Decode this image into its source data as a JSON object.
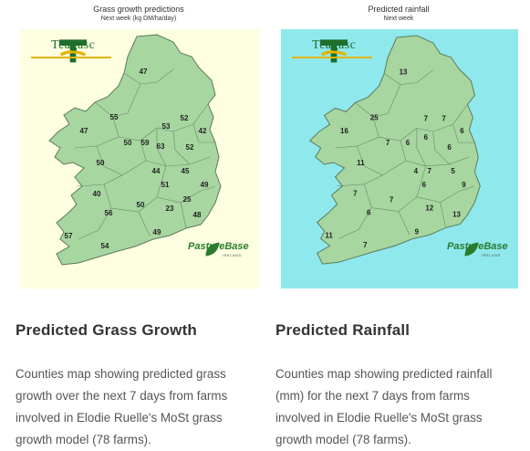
{
  "cards": [
    {
      "map_title": "Grass growth predictions",
      "map_subtitle": "Next week (kg DM/ha/day)",
      "logo_text": "Teagasc",
      "partner_logo_text": "PastureBase",
      "partner_logo_sub": "IRELAND",
      "sea_color": "#fefee0",
      "land_color": "#a7d6a0",
      "labels": [
        "47",
        "55",
        "53",
        "52",
        "47",
        "42",
        "59",
        "63",
        "50",
        "52",
        "44",
        "45",
        "50",
        "51",
        "49",
        "40",
        "25",
        "56",
        "50",
        "23",
        "48",
        "57",
        "49",
        "54"
      ],
      "heading": "Predicted Grass Growth",
      "description": "Counties map showing predicted grass growth over the next 7 days from farms involved in Elodie Ruelle's MoSt grass growth model (78 farms)."
    },
    {
      "map_title": "Predicted rainfall",
      "map_subtitle": "Next week",
      "logo_text": "Teagasc",
      "partner_logo_text": "PastureBase",
      "partner_logo_sub": "IRELAND",
      "sea_color": "#8fe8ec",
      "land_color": "#a7d6a0",
      "labels": [
        "13",
        "25",
        "7",
        "7",
        "16",
        "7",
        "6",
        "6",
        "6",
        "6",
        "11",
        "4",
        "7",
        "5",
        "7",
        "6",
        "9",
        "7",
        "6",
        "12",
        "13",
        "11",
        "9",
        "7"
      ],
      "heading": "Predicted Rainfall",
      "description": "Counties map showing predicted rainfall (mm) for the next 7 days from farms involved in Elodie Ruelle's MoSt grass growth model (78 farms)."
    }
  ]
}
